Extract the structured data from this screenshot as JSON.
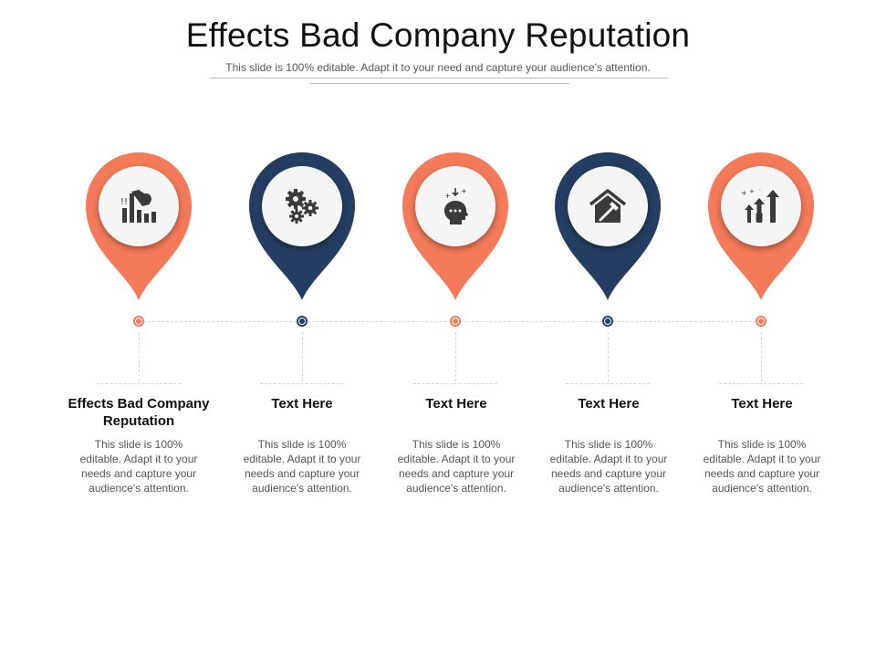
{
  "slide": {
    "title": "Effects Bad Company Reputation",
    "subtitle": "This slide is 100% editable. Adapt it to your need and capture your audience’s attention."
  },
  "colors": {
    "orange": "#F47A5A",
    "navy": "#243E63",
    "icon": "#3a3a3a"
  },
  "steps": [
    {
      "title": "Effects Bad Company Reputation",
      "text": "This slide is 100% editable. Adapt it to your needs and capture your audience's attention.",
      "icon": "declining-bar-chart-icon",
      "color": "orange"
    },
    {
      "title": "Text Here",
      "text": "This slide is 100% editable. Adapt it to your needs and capture your audience's attention.",
      "icon": "gears-icon",
      "color": "navy"
    },
    {
      "title": "Text Here",
      "text": "This slide is 100% editable. Adapt it to your needs and capture your audience's attention.",
      "icon": "head-thinking-icon",
      "color": "orange"
    },
    {
      "title": "Text Here",
      "text": "This slide is 100% editable. Adapt it to your needs and capture your audience's attention.",
      "icon": "house-hammer-icon",
      "color": "navy"
    },
    {
      "title": "Text Here",
      "text": "This slide is 100% editable. Adapt it to your needs and capture your audience's attention.",
      "icon": "growth-people-icon",
      "color": "orange"
    }
  ]
}
